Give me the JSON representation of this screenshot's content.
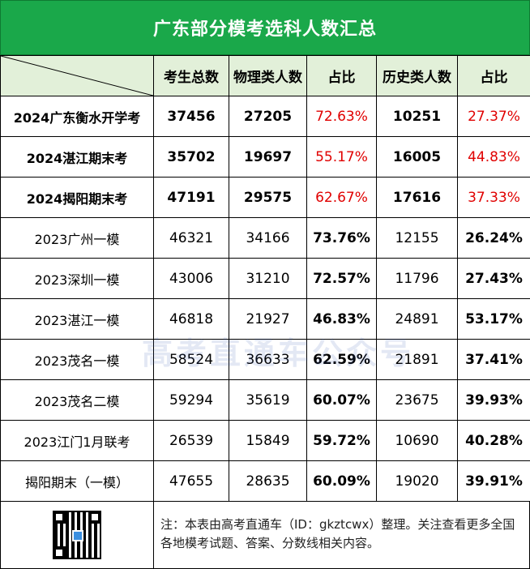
{
  "title": "广东部分模考选科人数汇总",
  "columns": [
    "考生总数",
    "物理类人数",
    "占比",
    "历史类人数",
    "占比"
  ],
  "rows": [
    {
      "label": "2024广东衡水开学考",
      "total": "37456",
      "physics": "27205",
      "physics_pct": "72.63%",
      "history": "10251",
      "history_pct": "27.37%"
    },
    {
      "label": "2024湛江期末考",
      "total": "35702",
      "physics": "19697",
      "physics_pct": "55.17%",
      "history": "16005",
      "history_pct": "44.83%"
    },
    {
      "label": "2024揭阳期末考",
      "total": "47191",
      "physics": "29575",
      "physics_pct": "62.67%",
      "history": "17616",
      "history_pct": "37.33%"
    },
    {
      "label": "2023广州一模",
      "total": "46321",
      "physics": "34166",
      "physics_pct": "73.76%",
      "history": "12155",
      "history_pct": "26.24%"
    },
    {
      "label": "2023深圳一模",
      "total": "43006",
      "physics": "31210",
      "physics_pct": "72.57%",
      "history": "11796",
      "history_pct": "27.43%"
    },
    {
      "label": "2023湛江一模",
      "total": "46818",
      "physics": "21927",
      "physics_pct": "46.83%",
      "history": "24891",
      "history_pct": "53.17%"
    },
    {
      "label": "2023茂名一模",
      "total": "58524",
      "physics": "36633",
      "physics_pct": "62.59%",
      "history": "21891",
      "history_pct": "37.41%"
    },
    {
      "label": "2023茂名二模",
      "total": "59294",
      "physics": "35619",
      "physics_pct": "60.07%",
      "history": "23675",
      "history_pct": "39.93%"
    },
    {
      "label": "2023江门1月联考",
      "total": "26539",
      "physics": "15849",
      "physics_pct": "59.72%",
      "history": "10690",
      "history_pct": "40.28%"
    },
    {
      "label": "揭阳期末（一模）",
      "total": "47655",
      "physics": "28635",
      "physics_pct": "60.09%",
      "history": "19020",
      "history_pct": "39.91%"
    }
  ],
  "footer_note": "注：本表由高考直通车（ID：gkztcwx）整理。关注查看更多全国各地模考试题、答案、分数线相关内容。",
  "watermark": "高考直通车公众号",
  "colors": {
    "header_green": "#1aa84a",
    "header_light": "#e2f0d9",
    "highlight_red": "#e00000"
  }
}
